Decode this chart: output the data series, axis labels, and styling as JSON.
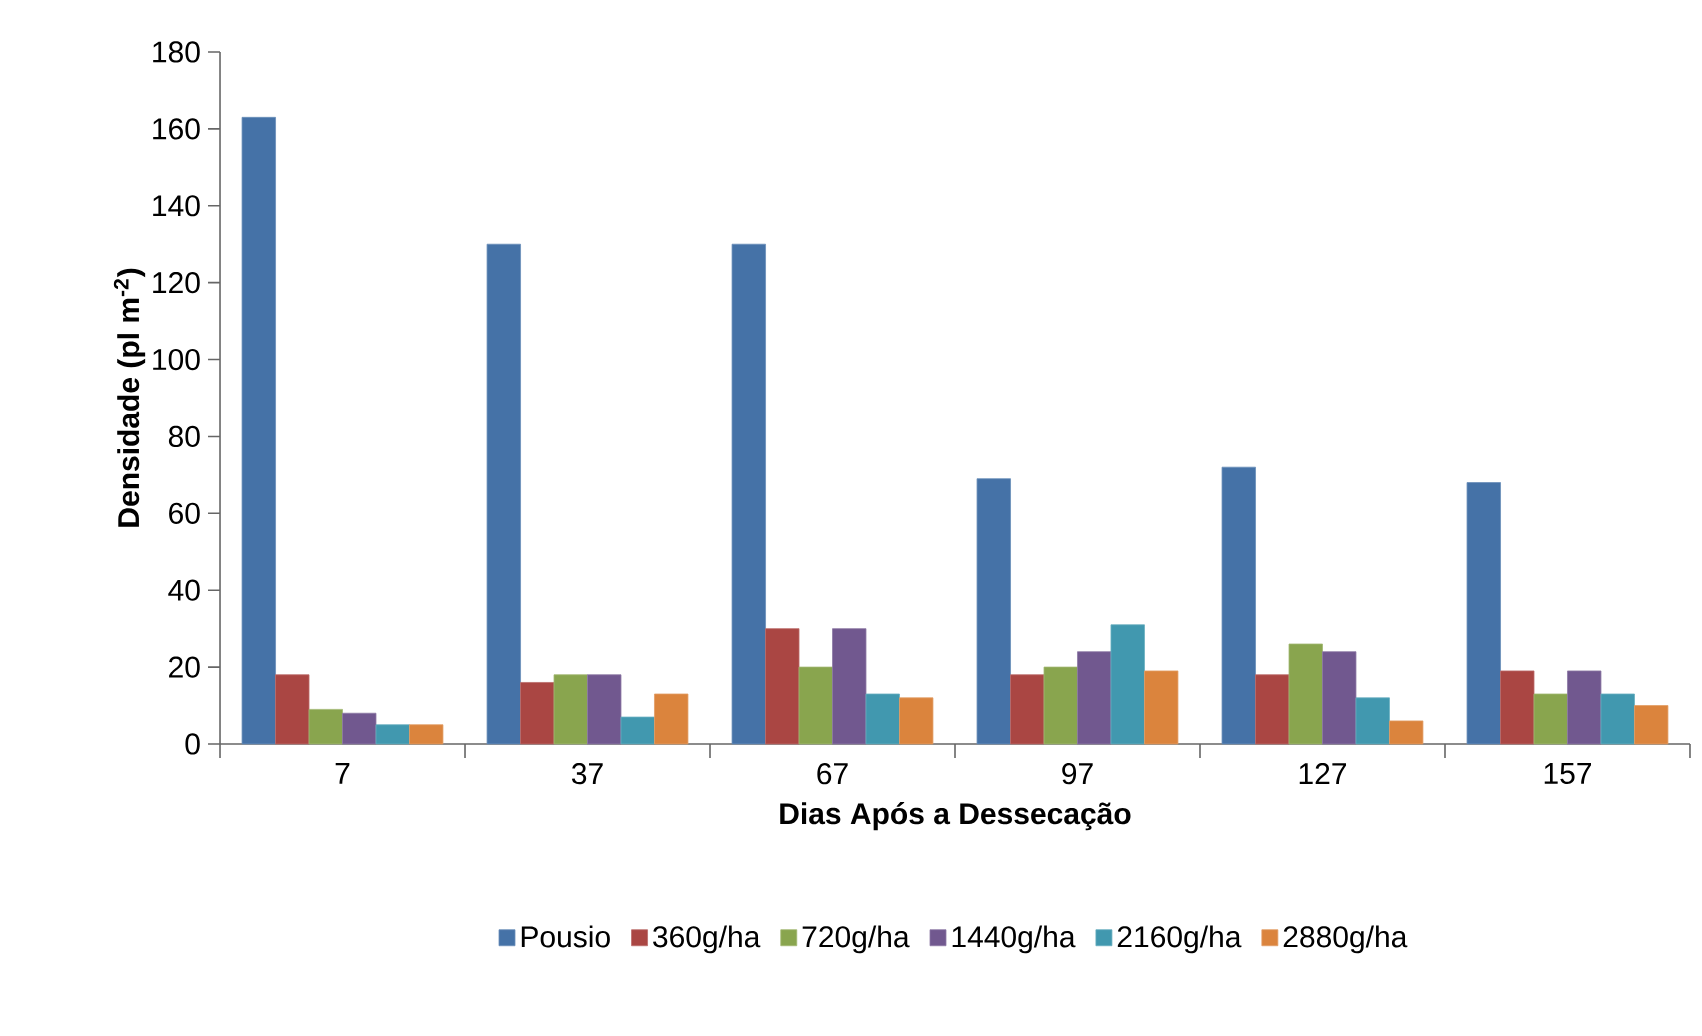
{
  "chart_data": {
    "type": "bar",
    "xlabel": "Dias Após a Dessecação",
    "ylabel": "Densidade (pl m$^{-2}$)",
    "categories": [
      "7",
      "37",
      "67",
      "97",
      "127",
      "157"
    ],
    "series": [
      {
        "name": "Pousio",
        "color": "#4572a7",
        "values": [
          163,
          130,
          130,
          69,
          72,
          68
        ]
      },
      {
        "name": "360g/ha",
        "color": "#aa4643",
        "values": [
          18,
          16,
          30,
          18,
          18,
          19
        ]
      },
      {
        "name": "720g/ha",
        "color": "#89a54e",
        "values": [
          9,
          18,
          20,
          20,
          26,
          13
        ]
      },
      {
        "name": "1440g/ha",
        "color": "#71588f",
        "values": [
          8,
          18,
          30,
          24,
          24,
          19
        ]
      },
      {
        "name": "2160g/ha",
        "color": "#4198af",
        "values": [
          5,
          7,
          13,
          31,
          12,
          13
        ]
      },
      {
        "name": "2880g/ha",
        "color": "#db843d",
        "values": [
          5,
          13,
          12,
          19,
          6,
          10
        ]
      }
    ],
    "ylim": [
      0,
      180
    ],
    "yticks": [
      0,
      20,
      40,
      60,
      80,
      100,
      120,
      140,
      160,
      180
    ],
    "grid": false,
    "legend": "bottom"
  }
}
